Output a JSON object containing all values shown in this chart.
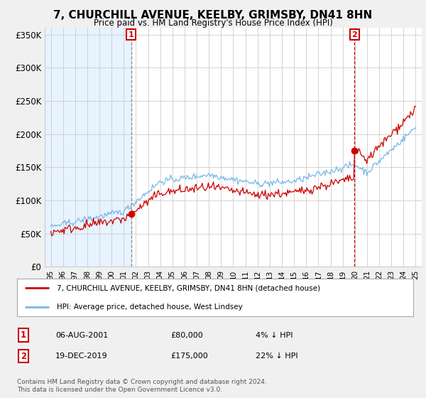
{
  "title": "7, CHURCHILL AVENUE, KEELBY, GRIMSBY, DN41 8HN",
  "subtitle": "Price paid vs. HM Land Registry's House Price Index (HPI)",
  "ylabel_ticks": [
    "£0",
    "£50K",
    "£100K",
    "£150K",
    "£200K",
    "£250K",
    "£300K",
    "£350K"
  ],
  "ylabel_values": [
    0,
    50000,
    100000,
    150000,
    200000,
    250000,
    300000,
    350000
  ],
  "ylim": [
    0,
    360000
  ],
  "hpi_color": "#7bb8e8",
  "price_color": "#cc0000",
  "marker1_year": 2001.6,
  "marker1_price": 80000,
  "marker2_year": 2019.97,
  "marker2_price": 175000,
  "legend_line1": "7, CHURCHILL AVENUE, KEELBY, GRIMSBY, DN41 8HN (detached house)",
  "legend_line2": "HPI: Average price, detached house, West Lindsey",
  "ann1_num": "1",
  "ann1_date": "06-AUG-2001",
  "ann1_price": "£80,000",
  "ann1_hpi": "4% ↓ HPI",
  "ann2_num": "2",
  "ann2_date": "19-DEC-2019",
  "ann2_price": "£175,000",
  "ann2_hpi": "22% ↓ HPI",
  "footnote": "Contains HM Land Registry data © Crown copyright and database right 2024.\nThis data is licensed under the Open Government Licence v3.0.",
  "background_color": "#f0f0f0",
  "plot_background": "#ffffff",
  "plot_shaded": "#ddeeff",
  "grid_color": "#cccccc"
}
